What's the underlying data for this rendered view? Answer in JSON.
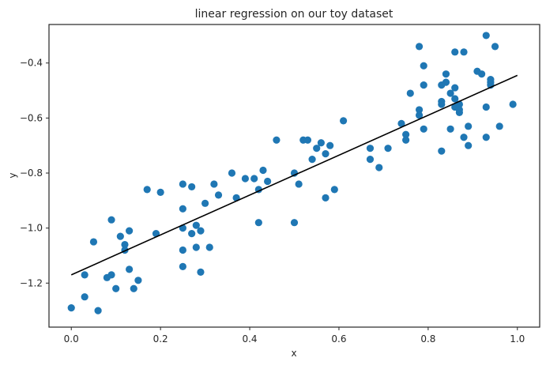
{
  "chart_data": {
    "type": "scatter",
    "title": "linear regression on our toy dataset",
    "xlabel": "x",
    "ylabel": "y",
    "xlim": [
      -0.05,
      1.05
    ],
    "ylim": [
      -1.36,
      -0.26
    ],
    "xticks": [
      0.0,
      0.2,
      0.4,
      0.6,
      0.8,
      1.0
    ],
    "xtick_labels": [
      "0.0",
      "0.2",
      "0.4",
      "0.6",
      "0.8",
      "1.0"
    ],
    "yticks": [
      -1.2,
      -1.0,
      -0.8,
      -0.6,
      -0.4
    ],
    "ytick_labels": [
      "−1.2",
      "−1.0",
      "−0.8",
      "−0.6",
      "−0.4"
    ],
    "grid": false,
    "legend": "none",
    "colors": {
      "points": "#1f77b4",
      "line": "#000000",
      "axes": "#262626"
    },
    "series": [
      {
        "type": "scatter",
        "x": [
          0.0,
          0.03,
          0.03,
          0.05,
          0.06,
          0.08,
          0.09,
          0.09,
          0.1,
          0.11,
          0.12,
          0.12,
          0.13,
          0.13,
          0.14,
          0.15,
          0.17,
          0.19,
          0.2,
          0.25,
          0.25,
          0.25,
          0.25,
          0.25,
          0.27,
          0.27,
          0.28,
          0.28,
          0.29,
          0.29,
          0.3,
          0.31,
          0.32,
          0.33,
          0.36,
          0.37,
          0.39,
          0.41,
          0.42,
          0.42,
          0.43,
          0.44,
          0.46,
          0.5,
          0.5,
          0.51,
          0.52,
          0.53,
          0.54,
          0.55,
          0.56,
          0.57,
          0.57,
          0.58,
          0.59,
          0.61,
          0.67,
          0.67,
          0.69,
          0.71,
          0.74,
          0.75,
          0.75,
          0.76,
          0.78,
          0.78,
          0.78,
          0.79,
          0.79,
          0.79,
          0.83,
          0.83,
          0.83,
          0.83,
          0.84,
          0.84,
          0.85,
          0.85,
          0.86,
          0.86,
          0.86,
          0.86,
          0.87,
          0.87,
          0.87,
          0.88,
          0.88,
          0.89,
          0.89,
          0.91,
          0.92,
          0.93,
          0.93,
          0.93,
          0.94,
          0.94,
          0.94,
          0.95,
          0.96,
          0.99
        ],
        "y": [
          -1.29,
          -1.17,
          -1.25,
          -1.05,
          -1.3,
          -1.18,
          -0.97,
          -1.17,
          -1.22,
          -1.03,
          -1.08,
          -1.06,
          -1.01,
          -1.15,
          -1.22,
          -1.19,
          -0.86,
          -1.02,
          -0.87,
          -1.08,
          -1.14,
          -0.93,
          -1.0,
          -0.84,
          -0.85,
          -1.02,
          -1.07,
          -0.99,
          -1.01,
          -1.16,
          -0.91,
          -1.07,
          -0.84,
          -0.88,
          -0.8,
          -0.89,
          -0.82,
          -0.82,
          -0.98,
          -0.86,
          -0.79,
          -0.83,
          -0.68,
          -0.98,
          -0.8,
          -0.84,
          -0.68,
          -0.68,
          -0.75,
          -0.71,
          -0.69,
          -0.73,
          -0.89,
          -0.7,
          -0.86,
          -0.61,
          -0.71,
          -0.75,
          -0.78,
          -0.71,
          -0.62,
          -0.68,
          -0.66,
          -0.51,
          -0.57,
          -0.59,
          -0.34,
          -0.64,
          -0.48,
          -0.41,
          -0.54,
          -0.55,
          -0.48,
          -0.72,
          -0.44,
          -0.47,
          -0.64,
          -0.51,
          -0.53,
          -0.49,
          -0.36,
          -0.56,
          -0.55,
          -0.58,
          -0.57,
          -0.36,
          -0.67,
          -0.7,
          -0.63,
          -0.43,
          -0.44,
          -0.56,
          -0.67,
          -0.3,
          -0.48,
          -0.47,
          -0.46,
          -0.34,
          -0.63,
          -0.55
        ]
      },
      {
        "type": "line",
        "x": [
          0.0,
          1.0
        ],
        "y": [
          -1.17,
          -0.445
        ]
      }
    ]
  }
}
